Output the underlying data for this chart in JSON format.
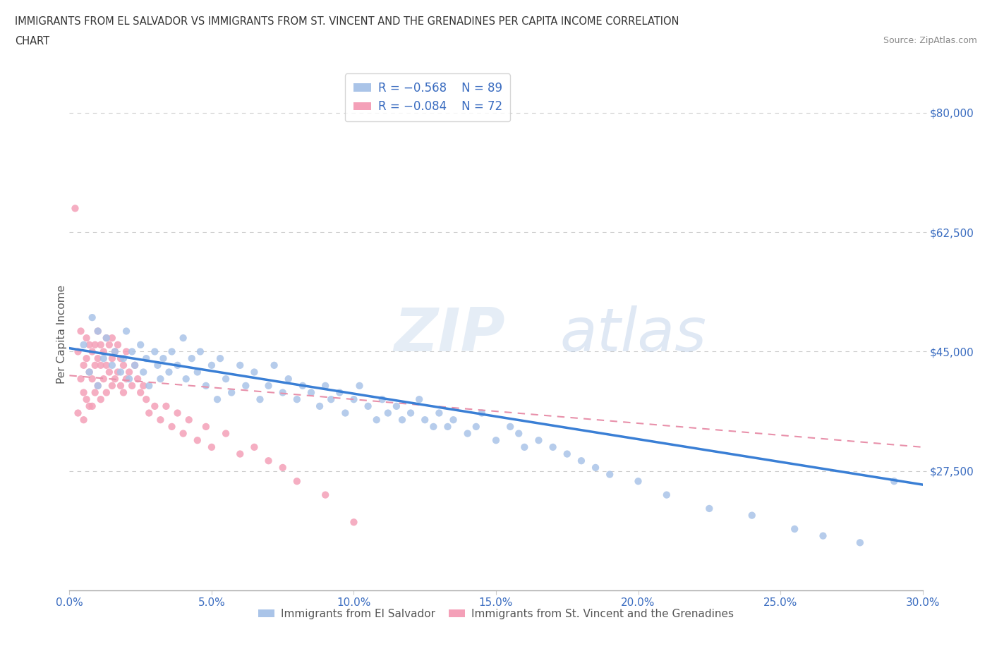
{
  "title_line1": "IMMIGRANTS FROM EL SALVADOR VS IMMIGRANTS FROM ST. VINCENT AND THE GRENADINES PER CAPITA INCOME CORRELATION",
  "title_line2": "CHART",
  "source": "Source: ZipAtlas.com",
  "ylabel": "Per Capita Income",
  "xlim": [
    0.0,
    0.3
  ],
  "ylim": [
    10000,
    85000
  ],
  "xtick_labels": [
    "0.0%",
    "5.0%",
    "10.0%",
    "15.0%",
    "20.0%",
    "25.0%",
    "30.0%"
  ],
  "xtick_vals": [
    0.0,
    0.05,
    0.1,
    0.15,
    0.2,
    0.25,
    0.3
  ],
  "ytick_labels": [
    "$27,500",
    "$45,000",
    "$62,500",
    "$80,000"
  ],
  "ytick_vals": [
    27500,
    45000,
    62500,
    80000
  ],
  "legend_r1": "R = -0.568",
  "legend_n1": "N = 89",
  "legend_r2": "R = -0.084",
  "legend_n2": "N = 72",
  "color_salvador": "#aac4e8",
  "color_svg": "#f4a0b8",
  "color_line_salvador": "#3a7fd5",
  "color_line_svg": "#e890aa",
  "watermark_zip": "ZIP",
  "watermark_atlas": "atlas",
  "background_color": "#ffffff",
  "dot_size": 55,
  "salvador_x": [
    0.005,
    0.007,
    0.008,
    0.01,
    0.01,
    0.012,
    0.013,
    0.015,
    0.016,
    0.018,
    0.019,
    0.02,
    0.021,
    0.022,
    0.023,
    0.025,
    0.026,
    0.027,
    0.028,
    0.03,
    0.031,
    0.032,
    0.033,
    0.035,
    0.036,
    0.038,
    0.04,
    0.041,
    0.043,
    0.045,
    0.046,
    0.048,
    0.05,
    0.052,
    0.053,
    0.055,
    0.057,
    0.06,
    0.062,
    0.065,
    0.067,
    0.07,
    0.072,
    0.075,
    0.077,
    0.08,
    0.082,
    0.085,
    0.088,
    0.09,
    0.092,
    0.095,
    0.097,
    0.1,
    0.102,
    0.105,
    0.108,
    0.11,
    0.112,
    0.115,
    0.117,
    0.12,
    0.123,
    0.125,
    0.128,
    0.13,
    0.133,
    0.135,
    0.14,
    0.143,
    0.145,
    0.15,
    0.155,
    0.158,
    0.16,
    0.165,
    0.17,
    0.175,
    0.18,
    0.185,
    0.19,
    0.2,
    0.21,
    0.225,
    0.24,
    0.255,
    0.265,
    0.278,
    0.29
  ],
  "salvador_y": [
    46000,
    42000,
    50000,
    48000,
    40000,
    44000,
    47000,
    43000,
    45000,
    42000,
    44000,
    48000,
    41000,
    45000,
    43000,
    46000,
    42000,
    44000,
    40000,
    45000,
    43000,
    41000,
    44000,
    42000,
    45000,
    43000,
    47000,
    41000,
    44000,
    42000,
    45000,
    40000,
    43000,
    38000,
    44000,
    41000,
    39000,
    43000,
    40000,
    42000,
    38000,
    40000,
    43000,
    39000,
    41000,
    38000,
    40000,
    39000,
    37000,
    40000,
    38000,
    39000,
    36000,
    38000,
    40000,
    37000,
    35000,
    38000,
    36000,
    37000,
    35000,
    36000,
    38000,
    35000,
    34000,
    36000,
    34000,
    35000,
    33000,
    34000,
    36000,
    32000,
    34000,
    33000,
    31000,
    32000,
    31000,
    30000,
    29000,
    28000,
    27000,
    26000,
    24000,
    22000,
    21000,
    19000,
    18000,
    17000,
    26000
  ],
  "svg_x": [
    0.002,
    0.003,
    0.003,
    0.004,
    0.004,
    0.005,
    0.005,
    0.005,
    0.006,
    0.006,
    0.006,
    0.007,
    0.007,
    0.007,
    0.008,
    0.008,
    0.008,
    0.009,
    0.009,
    0.009,
    0.01,
    0.01,
    0.01,
    0.011,
    0.011,
    0.011,
    0.012,
    0.012,
    0.013,
    0.013,
    0.013,
    0.014,
    0.014,
    0.015,
    0.015,
    0.015,
    0.016,
    0.016,
    0.017,
    0.017,
    0.018,
    0.018,
    0.019,
    0.019,
    0.02,
    0.02,
    0.021,
    0.022,
    0.023,
    0.024,
    0.025,
    0.026,
    0.027,
    0.028,
    0.03,
    0.032,
    0.034,
    0.036,
    0.038,
    0.04,
    0.042,
    0.045,
    0.048,
    0.05,
    0.055,
    0.06,
    0.065,
    0.07,
    0.075,
    0.08,
    0.09,
    0.1
  ],
  "svg_y": [
    66000,
    45000,
    36000,
    48000,
    41000,
    43000,
    39000,
    35000,
    47000,
    44000,
    38000,
    46000,
    42000,
    37000,
    45000,
    41000,
    37000,
    46000,
    43000,
    39000,
    48000,
    44000,
    40000,
    46000,
    43000,
    38000,
    45000,
    41000,
    47000,
    43000,
    39000,
    46000,
    42000,
    47000,
    44000,
    40000,
    45000,
    41000,
    46000,
    42000,
    44000,
    40000,
    43000,
    39000,
    45000,
    41000,
    42000,
    40000,
    43000,
    41000,
    39000,
    40000,
    38000,
    36000,
    37000,
    35000,
    37000,
    34000,
    36000,
    33000,
    35000,
    32000,
    34000,
    31000,
    33000,
    30000,
    31000,
    29000,
    28000,
    26000,
    24000,
    20000
  ]
}
